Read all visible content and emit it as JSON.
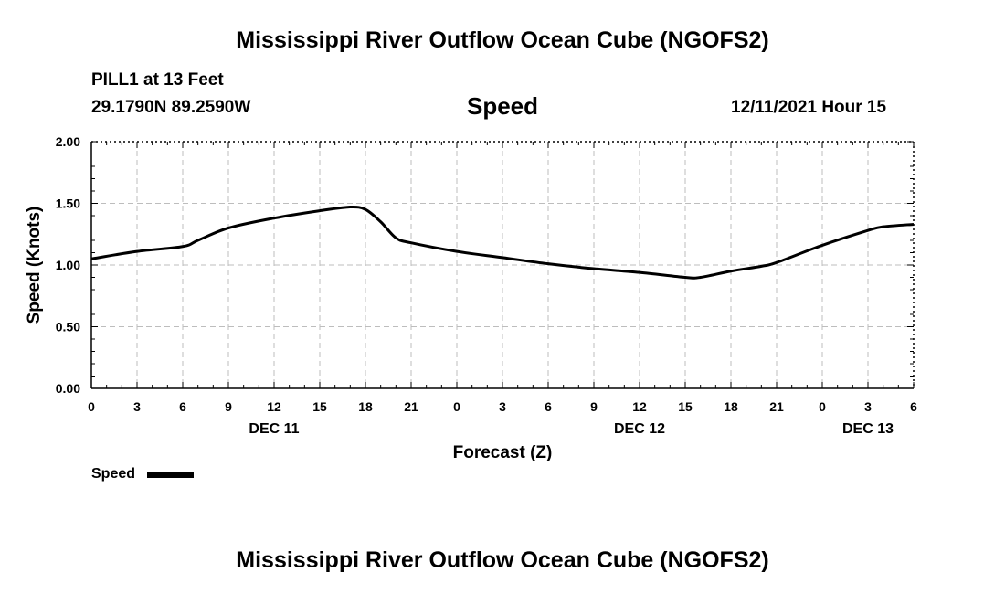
{
  "main_title": "Mississippi River Outflow Ocean Cube (NGOFS2)",
  "bottom_title": "Mississippi River Outflow Ocean Cube (NGOFS2)",
  "station": "PILL1 at 13 Feet",
  "latlon": "29.1790N  89.2590W",
  "datetime": "12/11/2021 Hour 15",
  "legend_label": "Speed",
  "chart_data": {
    "type": "line",
    "title": "Speed",
    "xlabel": "Forecast (Z)",
    "ylabel": "Speed (Knots)",
    "ylim": [
      0,
      2
    ],
    "xlim": [
      0,
      54
    ],
    "grid": true,
    "y_ticks": [
      "0.00",
      "0.50",
      "1.00",
      "1.50",
      "2.00"
    ],
    "x_ticks": [
      "0",
      "3",
      "6",
      "9",
      "12",
      "15",
      "18",
      "21",
      "0",
      "3",
      "6",
      "9",
      "12",
      "15",
      "18",
      "21",
      "0",
      "3",
      "6"
    ],
    "date_labels": [
      {
        "label": "DEC 11",
        "hour": 12
      },
      {
        "label": "DEC 12",
        "hour": 36
      },
      {
        "label": "DEC 13",
        "hour": 51
      }
    ],
    "legend": [
      "Speed"
    ],
    "series": [
      {
        "name": "Speed",
        "x": [
          0,
          3,
          6,
          7,
          9,
          12,
          15,
          17,
          18,
          19,
          20,
          21,
          24,
          27,
          30,
          33,
          36,
          39,
          40,
          42,
          44,
          45,
          48,
          51,
          52,
          54
        ],
        "values": [
          1.05,
          1.11,
          1.15,
          1.2,
          1.3,
          1.38,
          1.44,
          1.47,
          1.45,
          1.35,
          1.22,
          1.18,
          1.11,
          1.06,
          1.01,
          0.97,
          0.94,
          0.9,
          0.9,
          0.95,
          0.99,
          1.02,
          1.16,
          1.28,
          1.31,
          1.33
        ]
      }
    ]
  }
}
